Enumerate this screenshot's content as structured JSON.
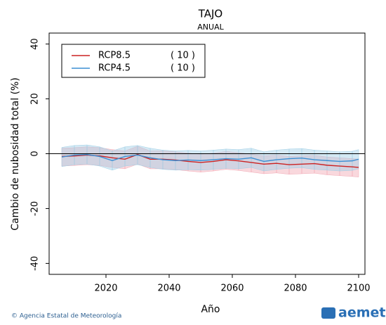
{
  "chart_data": {
    "type": "line",
    "title": "TAJO",
    "subtitle": "ANUAL",
    "x_label": "Año",
    "y_label": "Cambio de nubosidad total (%)",
    "x": [
      2006,
      2010,
      2014,
      2018,
      2022,
      2026,
      2030,
      2034,
      2038,
      2042,
      2046,
      2050,
      2054,
      2058,
      2062,
      2066,
      2070,
      2074,
      2078,
      2082,
      2086,
      2090,
      2094,
      2098,
      2100
    ],
    "xlim": [
      2002,
      2102
    ],
    "xticks": [
      2020,
      2040,
      2060,
      2080,
      2100
    ],
    "ylim": [
      -44,
      44
    ],
    "yticks": [
      -40,
      -20,
      0,
      20,
      40
    ],
    "hline": 0,
    "series": [
      {
        "name": "RCP8.5",
        "members": "( 10 )",
        "color": "#cc2222",
        "band_color": "#f2a8b4",
        "values": [
          -1,
          -0.8,
          -0.5,
          -0.8,
          -1.5,
          -2,
          -0.3,
          -2,
          -2,
          -2.3,
          -2.8,
          -3.2,
          -2.8,
          -2.2,
          -2.6,
          -3.2,
          -3.8,
          -3.5,
          -4,
          -3.8,
          -3.6,
          -4.2,
          -4.5,
          -4.8,
          -5
        ],
        "upper": [
          2,
          2.2,
          2.5,
          2.2,
          1.5,
          1,
          2.7,
          1,
          1,
          0.7,
          0.2,
          -0.2,
          0.2,
          0.8,
          0.4,
          -0.2,
          -0.8,
          -0.5,
          -1,
          -0.8,
          -0.6,
          -1.2,
          -1.5,
          -1.8,
          -2
        ],
        "lower": [
          -4.5,
          -4.3,
          -4,
          -4.3,
          -5,
          -5.5,
          -3.8,
          -5.5,
          -5.5,
          -5.8,
          -6.3,
          -6.7,
          -6.3,
          -5.7,
          -6.1,
          -6.7,
          -7.3,
          -7,
          -7.5,
          -7.3,
          -7.1,
          -7.7,
          -8,
          -8.3,
          -8.5
        ]
      },
      {
        "name": "RCP4.5",
        "members": "( 10 )",
        "color": "#3b8fd4",
        "band_color": "#9fcfe6",
        "values": [
          -1.2,
          -0.5,
          -0.3,
          -1,
          -2.5,
          -1,
          -0.5,
          -1.5,
          -2.2,
          -2.5,
          -2.3,
          -2.5,
          -2.2,
          -1.8,
          -2,
          -1.5,
          -2.8,
          -2.2,
          -1.8,
          -1.6,
          -2.2,
          -2.5,
          -2.8,
          -2.6,
          -2
        ],
        "upper": [
          2.3,
          3,
          3.2,
          2.5,
          1,
          2.5,
          3,
          2,
          1.3,
          1,
          1.2,
          1,
          1.3,
          1.7,
          1.5,
          2,
          0.7,
          1.3,
          1.7,
          1.9,
          1.3,
          1,
          0.7,
          0.9,
          1.5
        ],
        "lower": [
          -4.7,
          -4,
          -3.8,
          -4.5,
          -6,
          -4.5,
          -4,
          -5,
          -5.7,
          -6,
          -5.8,
          -6,
          -5.7,
          -5.3,
          -5.5,
          -5,
          -6.3,
          -5.7,
          -5.3,
          -5.1,
          -5.7,
          -6,
          -6.3,
          -6.1,
          -5.5
        ]
      }
    ]
  },
  "footer": {
    "credit": "© Agencia Estatal de Meteorología",
    "logo": "aemet"
  }
}
